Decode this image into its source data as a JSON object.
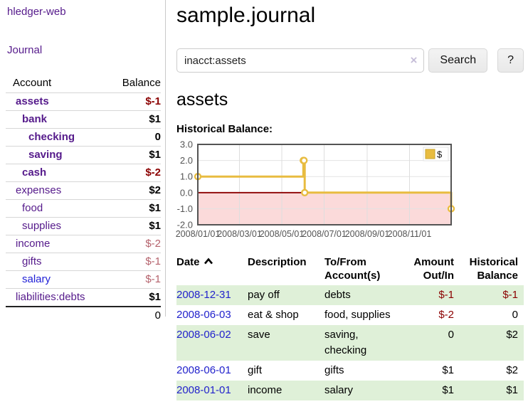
{
  "sidebar": {
    "brand": "hledger-web",
    "nav_journal": "Journal",
    "accounts_table": {
      "account_header": "Account",
      "balance_header": "Balance",
      "rows": [
        {
          "name": "assets",
          "indent": 1,
          "emphasis": true,
          "balance": "$-1"
        },
        {
          "name": "bank",
          "indent": 2,
          "emphasis": true,
          "balance": "$1"
        },
        {
          "name": "checking",
          "indent": 3,
          "emphasis": true,
          "balance": "0"
        },
        {
          "name": "saving",
          "indent": 3,
          "emphasis": true,
          "balance": "$1"
        },
        {
          "name": "cash",
          "indent": 2,
          "emphasis": true,
          "balance": "$-2"
        },
        {
          "name": "expenses",
          "indent": 1,
          "emphasis": false,
          "balance": "$2"
        },
        {
          "name": "food",
          "indent": 2,
          "emphasis": false,
          "balance": "$1"
        },
        {
          "name": "supplies",
          "indent": 2,
          "emphasis": false,
          "balance": "$1"
        },
        {
          "name": "income",
          "indent": 1,
          "emphasis": false,
          "balance": "$-2"
        },
        {
          "name": "gifts",
          "indent": 2,
          "emphasis": false,
          "balance": "$-1"
        },
        {
          "name": "salary",
          "indent": 2,
          "emphasis": false,
          "balance": "$-1",
          "unvisited": true
        },
        {
          "name": "liabilities:debts",
          "indent": 1,
          "emphasis": false,
          "balance": "$1"
        }
      ],
      "total": "0"
    }
  },
  "main": {
    "title": "sample.journal",
    "search": {
      "value": "inacct:assets",
      "clear_icon": "×",
      "button_label": "Search",
      "help_label": "?"
    },
    "section_title": "assets",
    "chart_label": "Historical Balance:"
  },
  "chart_data": {
    "type": "line",
    "step": true,
    "title": "Historical Balance",
    "legend": {
      "label": "$",
      "position": "top-right"
    },
    "series": [
      {
        "name": "$",
        "color": "#e8bc40",
        "points": [
          [
            "2008-01-01",
            1
          ],
          [
            "2008-06-01",
            2
          ],
          [
            "2008-06-02",
            2
          ],
          [
            "2008-06-03",
            0
          ],
          [
            "2008-12-31",
            -1
          ]
        ]
      }
    ],
    "xlim": [
      "2008-01-01",
      "2008-12-31"
    ],
    "ylim": [
      -2,
      3
    ],
    "x_ticks": [
      "2008/01/01",
      "2008/03/01",
      "2008/05/01",
      "2008/07/01",
      "2008/09/01",
      "2008/11/01"
    ],
    "y_ticks": [
      "3.0",
      "2.0",
      "1.0",
      "0.0",
      "-1.0",
      "-2.0"
    ],
    "grid": true,
    "negative_region_color": "#fbdada",
    "zero_line_color": "#8b0000",
    "border_color": "#545454"
  },
  "transactions": {
    "headers": {
      "date": "Date",
      "description": "Description",
      "tofrom_line1": "To/From",
      "tofrom_line2": "Account(s)",
      "amount_line1": "Amount",
      "amount_line2": "Out/In",
      "balance_line1": "Historical",
      "balance_line2": "Balance"
    },
    "rows": [
      {
        "date": "2008-12-31",
        "description": "pay off",
        "accounts": "debts",
        "amount": "$-1",
        "balance": "$-1"
      },
      {
        "date": "2008-06-03",
        "description": "eat & shop",
        "accounts": "food, supplies",
        "amount": "$-2",
        "balance": "0"
      },
      {
        "date": "2008-06-02",
        "description": "save",
        "accounts": "saving, checking",
        "amount": "0",
        "balance": "$2"
      },
      {
        "date": "2008-06-01",
        "description": "gift",
        "accounts": "gifts",
        "amount": "$1",
        "balance": "$2"
      },
      {
        "date": "2008-01-01",
        "description": "income",
        "accounts": "salary",
        "amount": "$1",
        "balance": "$1"
      }
    ]
  }
}
